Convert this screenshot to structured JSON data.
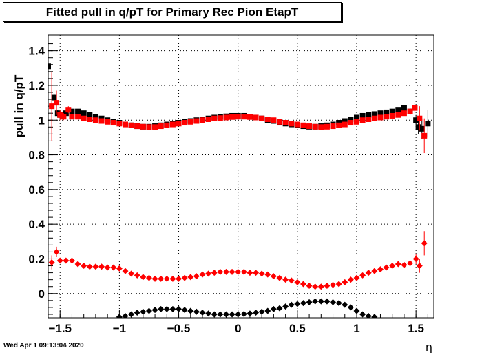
{
  "title": "Fitted pull in q/pT for Primary Rec Pion EtapT",
  "timestamp": "Wed Apr  1 09:13:04 2020",
  "chart_data": {
    "type": "scatter",
    "title": "Fitted pull in q/pT for Primary Rec Pion EtapT",
    "xlabel": "η",
    "ylabel": "pull in q/pT",
    "xlim": [
      -1.6,
      1.65
    ],
    "ylim": [
      -0.14,
      1.49
    ],
    "xticks": [
      -1.5,
      -1,
      -0.5,
      0,
      0.5,
      1,
      1.5
    ],
    "xtick_labels": [
      "−1.5",
      "−1",
      "−0.5",
      "0",
      "0.5",
      "1",
      "1.5"
    ],
    "yticks": [
      0,
      0.2,
      0.4,
      0.6,
      0.8,
      1,
      1.2,
      1.4
    ],
    "ytick_labels": [
      "0",
      "0.2",
      "0.4",
      "0.6",
      "0.8",
      "1",
      "1.2",
      "1.4"
    ],
    "grid": true,
    "series": [
      {
        "color": "#000000",
        "marker": "square",
        "x": [
          -1.55,
          -1.52,
          -1.5,
          -1.45,
          -1.4,
          -1.35,
          -1.3,
          -1.25,
          -1.2,
          -1.15,
          -1.1,
          -1.05,
          -1.0,
          -0.95,
          -0.9,
          -0.85,
          -0.8,
          -0.75,
          -0.7,
          -0.65,
          -0.6,
          -0.55,
          -0.5,
          -0.45,
          -0.4,
          -0.35,
          -0.3,
          -0.25,
          -0.2,
          -0.15,
          -0.1,
          -0.05,
          0.0,
          0.05,
          0.1,
          0.15,
          0.2,
          0.25,
          0.3,
          0.35,
          0.4,
          0.45,
          0.5,
          0.55,
          0.6,
          0.65,
          0.7,
          0.75,
          0.8,
          0.85,
          0.9,
          0.95,
          1.0,
          1.05,
          1.1,
          1.15,
          1.2,
          1.25,
          1.3,
          1.35,
          1.4,
          1.45,
          1.5,
          1.52,
          1.55,
          1.6
        ],
        "y": [
          1.13,
          1.04,
          1.03,
          1.04,
          1.05,
          1.05,
          1.04,
          1.03,
          1.02,
          1.01,
          1.0,
          0.99,
          0.985,
          0.975,
          0.97,
          0.965,
          0.962,
          0.962,
          0.965,
          0.97,
          0.975,
          0.98,
          0.985,
          0.99,
          0.995,
          1.0,
          1.005,
          1.01,
          1.015,
          1.02,
          1.022,
          1.025,
          1.025,
          1.025,
          1.02,
          1.015,
          1.01,
          1.0,
          0.995,
          0.985,
          0.98,
          0.975,
          0.97,
          0.965,
          0.962,
          0.962,
          0.965,
          0.97,
          0.975,
          0.985,
          0.995,
          1.005,
          1.015,
          1.025,
          1.03,
          1.035,
          1.04,
          1.045,
          1.05,
          1.06,
          1.07,
          1.05,
          1.0,
          0.96,
          0.95,
          0.98
        ],
        "yerr": [
          0.02,
          0.02,
          0.02,
          0.01,
          0.01,
          0.01,
          0.01,
          0.005,
          0.005,
          0.005,
          0.005,
          0.005,
          0.005,
          0.005,
          0.005,
          0.005,
          0.005,
          0.005,
          0.005,
          0.005,
          0.005,
          0.005,
          0.005,
          0.005,
          0.005,
          0.005,
          0.005,
          0.005,
          0.005,
          0.005,
          0.005,
          0.005,
          0.005,
          0.005,
          0.005,
          0.005,
          0.005,
          0.005,
          0.005,
          0.005,
          0.005,
          0.005,
          0.005,
          0.005,
          0.005,
          0.005,
          0.005,
          0.005,
          0.005,
          0.005,
          0.005,
          0.005,
          0.005,
          0.005,
          0.005,
          0.005,
          0.005,
          0.005,
          0.005,
          0.005,
          0.01,
          0.02,
          0.03,
          0.04,
          0.06,
          0.08
        ]
      },
      {
        "color": "#ff0000",
        "marker": "square",
        "x": [
          -1.57,
          -1.53,
          -1.5,
          -1.47,
          -1.43,
          -1.4,
          -1.35,
          -1.3,
          -1.25,
          -1.2,
          -1.15,
          -1.1,
          -1.05,
          -1.0,
          -0.95,
          -0.9,
          -0.85,
          -0.8,
          -0.75,
          -0.7,
          -0.65,
          -0.6,
          -0.55,
          -0.5,
          -0.45,
          -0.4,
          -0.35,
          -0.3,
          -0.25,
          -0.2,
          -0.15,
          -0.1,
          -0.05,
          0.0,
          0.05,
          0.1,
          0.15,
          0.2,
          0.25,
          0.3,
          0.35,
          0.4,
          0.45,
          0.5,
          0.55,
          0.6,
          0.65,
          0.7,
          0.75,
          0.8,
          0.85,
          0.9,
          0.95,
          1.0,
          1.05,
          1.1,
          1.15,
          1.2,
          1.25,
          1.3,
          1.35,
          1.4,
          1.45,
          1.49,
          1.53,
          1.57
        ],
        "y": [
          1.08,
          1.1,
          1.03,
          1.02,
          1.06,
          1.02,
          1.02,
          1.01,
          1.005,
          1.0,
          0.995,
          0.99,
          0.985,
          0.98,
          0.975,
          0.97,
          0.965,
          0.962,
          0.96,
          0.96,
          0.965,
          0.97,
          0.975,
          0.98,
          0.985,
          0.99,
          0.995,
          1.0,
          1.005,
          1.01,
          1.012,
          1.015,
          1.018,
          1.02,
          1.02,
          1.018,
          1.015,
          1.01,
          1.005,
          1.0,
          0.99,
          0.985,
          0.98,
          0.975,
          0.97,
          0.965,
          0.962,
          0.96,
          0.962,
          0.965,
          0.97,
          0.975,
          0.985,
          0.99,
          1.0,
          1.005,
          1.01,
          1.015,
          1.02,
          1.025,
          1.03,
          1.04,
          1.05,
          1.07,
          1.01,
          0.91
        ],
        "yerr": [
          0.2,
          0.07,
          0.03,
          0.02,
          0.02,
          0.01,
          0.01,
          0.005,
          0.005,
          0.005,
          0.005,
          0.005,
          0.005,
          0.005,
          0.005,
          0.005,
          0.005,
          0.005,
          0.005,
          0.005,
          0.005,
          0.005,
          0.005,
          0.005,
          0.005,
          0.005,
          0.005,
          0.005,
          0.005,
          0.005,
          0.005,
          0.005,
          0.005,
          0.005,
          0.005,
          0.005,
          0.005,
          0.005,
          0.005,
          0.005,
          0.005,
          0.005,
          0.005,
          0.005,
          0.005,
          0.005,
          0.005,
          0.005,
          0.005,
          0.005,
          0.005,
          0.005,
          0.005,
          0.005,
          0.005,
          0.005,
          0.005,
          0.005,
          0.005,
          0.005,
          0.01,
          0.01,
          0.02,
          0.03,
          0.07,
          0.1
        ]
      },
      {
        "color": "#ff0000",
        "marker": "diamond",
        "x": [
          -1.57,
          -1.53,
          -1.5,
          -1.45,
          -1.4,
          -1.35,
          -1.3,
          -1.25,
          -1.2,
          -1.15,
          -1.1,
          -1.05,
          -1.0,
          -0.95,
          -0.9,
          -0.85,
          -0.8,
          -0.75,
          -0.7,
          -0.65,
          -0.6,
          -0.55,
          -0.5,
          -0.45,
          -0.4,
          -0.35,
          -0.3,
          -0.25,
          -0.2,
          -0.15,
          -0.1,
          -0.05,
          0.0,
          0.05,
          0.1,
          0.15,
          0.2,
          0.25,
          0.3,
          0.35,
          0.4,
          0.45,
          0.5,
          0.55,
          0.6,
          0.65,
          0.7,
          0.75,
          0.8,
          0.85,
          0.9,
          0.95,
          1.0,
          1.05,
          1.1,
          1.15,
          1.2,
          1.25,
          1.3,
          1.35,
          1.4,
          1.45,
          1.5,
          1.53,
          1.57
        ],
        "y": [
          0.18,
          0.24,
          0.19,
          0.19,
          0.19,
          0.17,
          0.16,
          0.155,
          0.155,
          0.155,
          0.15,
          0.15,
          0.145,
          0.13,
          0.115,
          0.105,
          0.095,
          0.09,
          0.085,
          0.085,
          0.085,
          0.085,
          0.085,
          0.09,
          0.095,
          0.1,
          0.11,
          0.115,
          0.12,
          0.125,
          0.125,
          0.125,
          0.125,
          0.125,
          0.12,
          0.12,
          0.115,
          0.11,
          0.1,
          0.09,
          0.08,
          0.075,
          0.065,
          0.055,
          0.045,
          0.04,
          0.04,
          0.045,
          0.05,
          0.055,
          0.065,
          0.08,
          0.09,
          0.105,
          0.12,
          0.13,
          0.14,
          0.15,
          0.16,
          0.17,
          0.165,
          0.175,
          0.2,
          0.16,
          0.29
        ],
        "yerr": [
          0.04,
          0.03,
          0.015,
          0.01,
          0.01,
          0.005,
          0.005,
          0.005,
          0.005,
          0.005,
          0.005,
          0.005,
          0.005,
          0.005,
          0.005,
          0.005,
          0.005,
          0.005,
          0.005,
          0.005,
          0.005,
          0.005,
          0.005,
          0.005,
          0.005,
          0.005,
          0.005,
          0.005,
          0.005,
          0.005,
          0.005,
          0.005,
          0.005,
          0.005,
          0.005,
          0.005,
          0.005,
          0.005,
          0.005,
          0.005,
          0.005,
          0.005,
          0.005,
          0.005,
          0.005,
          0.005,
          0.005,
          0.005,
          0.005,
          0.005,
          0.005,
          0.005,
          0.005,
          0.005,
          0.005,
          0.005,
          0.005,
          0.005,
          0.005,
          0.005,
          0.005,
          0.01,
          0.03,
          0.04,
          0.07
        ]
      },
      {
        "color": "#000000",
        "marker": "diamond",
        "x": [
          -1.0,
          -0.95,
          -0.9,
          -0.85,
          -0.8,
          -0.75,
          -0.7,
          -0.65,
          -0.6,
          -0.55,
          -0.5,
          -0.45,
          -0.4,
          -0.35,
          -0.3,
          -0.25,
          -0.2,
          -0.15,
          -0.1,
          -0.05,
          0.0,
          0.05,
          0.1,
          0.15,
          0.2,
          0.25,
          0.3,
          0.35,
          0.4,
          0.45,
          0.5,
          0.55,
          0.6,
          0.65,
          0.7,
          0.75,
          0.8,
          0.85,
          0.9,
          0.95,
          1.0,
          1.05,
          1.1,
          1.15
        ],
        "y": [
          -0.135,
          -0.13,
          -0.12,
          -0.11,
          -0.105,
          -0.1,
          -0.095,
          -0.09,
          -0.09,
          -0.09,
          -0.09,
          -0.095,
          -0.1,
          -0.105,
          -0.11,
          -0.115,
          -0.12,
          -0.12,
          -0.12,
          -0.12,
          -0.12,
          -0.118,
          -0.115,
          -0.11,
          -0.105,
          -0.1,
          -0.09,
          -0.085,
          -0.075,
          -0.065,
          -0.06,
          -0.055,
          -0.05,
          -0.045,
          -0.045,
          -0.045,
          -0.05,
          -0.055,
          -0.065,
          -0.08,
          -0.1,
          -0.12,
          -0.13,
          -0.135
        ],
        "yerr": [
          0.005,
          0.005,
          0.005,
          0.005,
          0.005,
          0.005,
          0.005,
          0.005,
          0.005,
          0.005,
          0.005,
          0.005,
          0.005,
          0.005,
          0.005,
          0.005,
          0.005,
          0.005,
          0.005,
          0.005,
          0.005,
          0.005,
          0.005,
          0.005,
          0.005,
          0.005,
          0.005,
          0.005,
          0.005,
          0.005,
          0.005,
          0.005,
          0.005,
          0.005,
          0.005,
          0.005,
          0.005,
          0.005,
          0.005,
          0.005,
          0.005,
          0.005,
          0.005,
          0.005
        ]
      },
      {
        "color": "#000000",
        "marker": "square",
        "x": [
          -1.6
        ],
        "y": [
          1.31
        ],
        "yerr": [
          0.06
        ]
      }
    ]
  }
}
